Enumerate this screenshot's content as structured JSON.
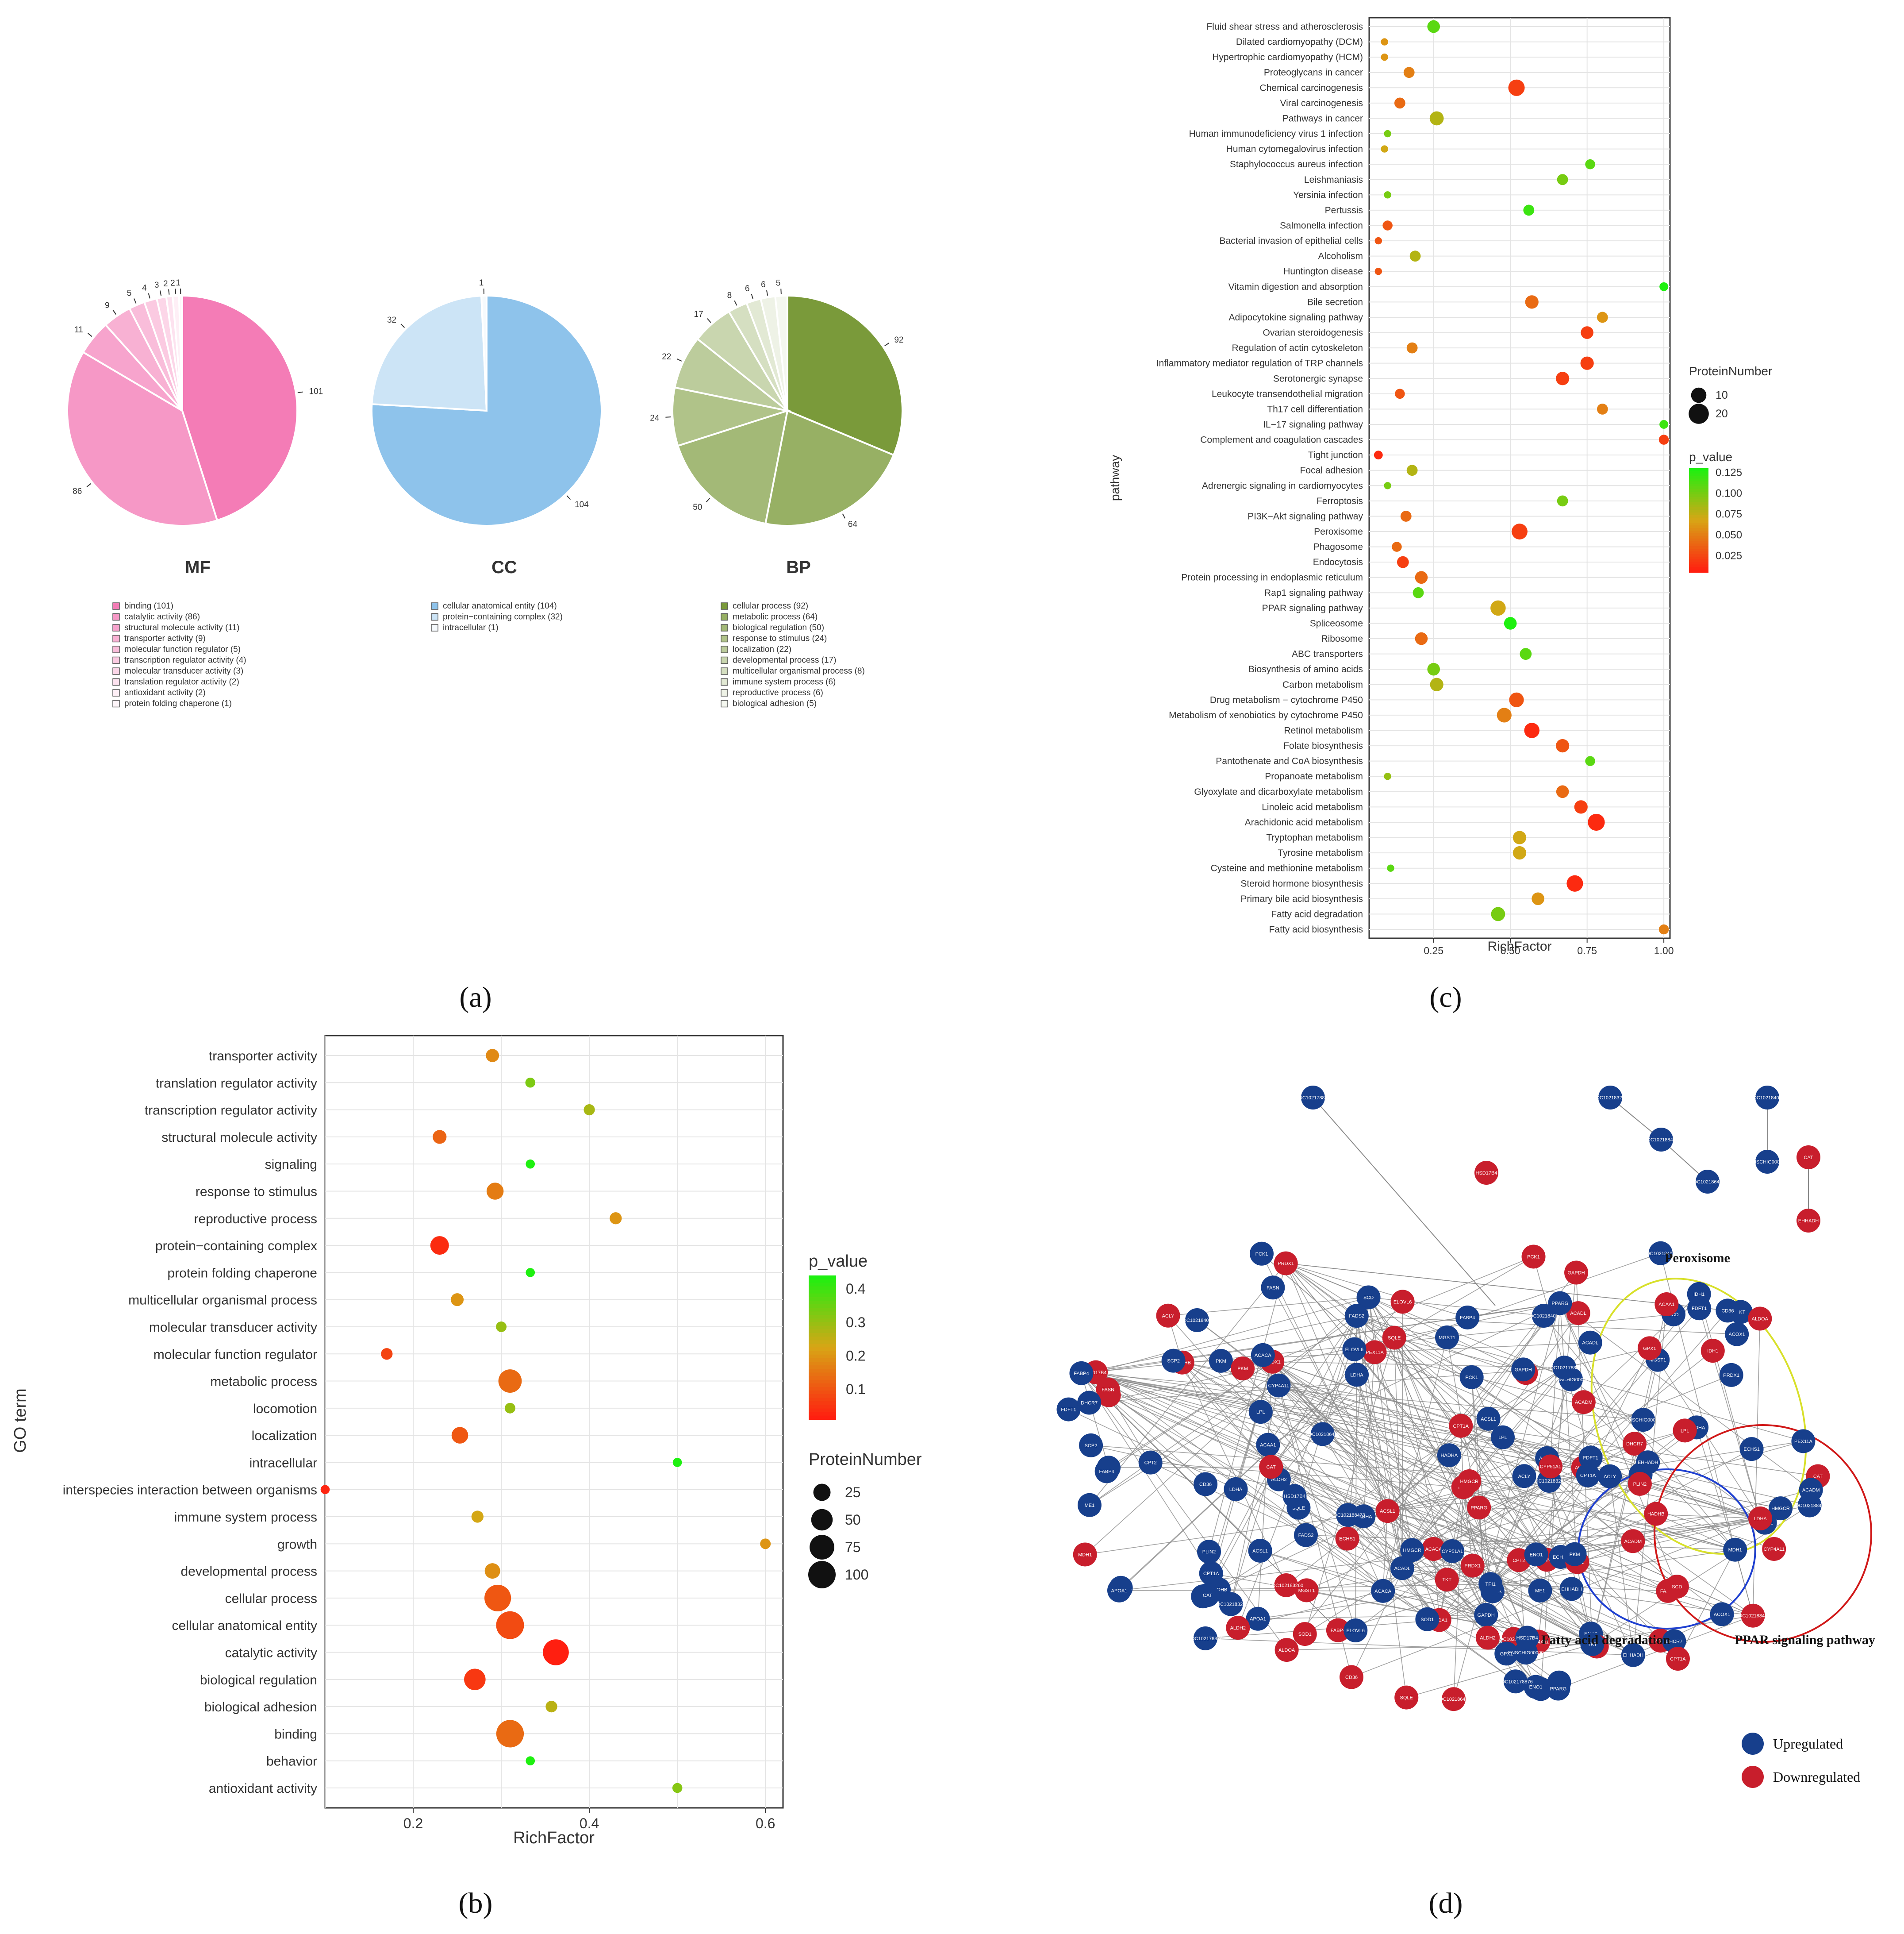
{
  "panels": [
    {
      "label": "(a)"
    },
    {
      "label": "(b)"
    },
    {
      "label": "(c)"
    },
    {
      "label": "(d)"
    }
  ],
  "colors": {
    "mf": "#f47cb6",
    "cc": "#8ec3eb",
    "bp": "#7a9a3a",
    "up": "#173f8c",
    "down": "#c81e2c",
    "p_low": "#ff1f10",
    "p_mid": "#d8a515",
    "p_high": "#1ef010"
  },
  "chart_data": [
    {
      "id": "pies",
      "type": "pie",
      "charts": [
        {
          "title": "MF",
          "values": [
            101,
            86,
            11,
            9,
            5,
            4,
            3,
            2,
            2,
            1
          ],
          "categories": [
            "binding",
            "catalytic activity",
            "structural molecule activity",
            "transporter activity",
            "molecular function regulator",
            "transcription regulator activity",
            "molecular transducer activity",
            "translation regulator activity",
            "antioxidant activity",
            "protein folding chaperone"
          ],
          "legend": [
            "binding (101)",
            "catalytic activity (86)",
            "structural molecule activity (11)",
            "transporter activity (9)",
            "molecular function regulator (5)",
            "transcription regulator activity (4)",
            "molecular transducer activity (3)",
            "translation regulator activity (2)",
            "antioxidant activity (2)",
            "protein folding chaperone (1)"
          ],
          "slice_labels": [
            "101",
            "86",
            "11",
            "9",
            "5",
            "4",
            "3",
            "2",
            "2",
            "1"
          ]
        },
        {
          "title": "CC",
          "values": [
            104,
            32,
            1
          ],
          "categories": [
            "cellular anatomical entity",
            "protein-containing complex",
            "intracellular"
          ],
          "legend": [
            "cellular anatomical entity (104)",
            "protein−containing complex (32)",
            "intracellular (1)"
          ],
          "slice_labels": [
            "104",
            "32",
            "1"
          ]
        },
        {
          "title": "BP",
          "values": [
            92,
            64,
            50,
            24,
            22,
            17,
            8,
            6,
            6,
            5
          ],
          "categories": [
            "cellular process",
            "metabolic process",
            "biological regulation",
            "response to stimulus",
            "localization",
            "developmental process",
            "multicellular organismal process",
            "immune system process",
            "reproductive process",
            "biological adhesion"
          ],
          "legend": [
            "cellular process (92)",
            "metabolic process (64)",
            "biological regulation (50)",
            "response to stimulus (24)",
            "localization (22)",
            "developmental process (17)",
            "multicellular organismal process (8)",
            "immune system process (6)",
            "reproductive process (6)",
            "biological adhesion (5)"
          ],
          "slice_labels": [
            "92",
            "64",
            "50",
            "24",
            "22",
            "17",
            "8",
            "6",
            "6",
            "5"
          ]
        }
      ]
    },
    {
      "id": "go_bubble",
      "type": "scatter",
      "xlabel": "RichFactor",
      "ylabel": "GO term",
      "xlim": [
        0.1,
        0.62
      ],
      "xticks": [
        "0.2",
        "0.4",
        "0.6"
      ],
      "xtick_values": [
        0.2,
        0.4,
        0.6
      ],
      "legend_color_title": "p_value",
      "color_ticks": [
        "0.4",
        "0.3",
        "0.2",
        "0.1"
      ],
      "color_tick_values": [
        0.4,
        0.3,
        0.2,
        0.1
      ],
      "color_range": [
        0.01,
        0.44
      ],
      "legend_size_title": "ProteinNumber",
      "size_ticks": [
        "25",
        "50",
        "75",
        "100"
      ],
      "size_tick_values": [
        25,
        50,
        75,
        100
      ],
      "categories": [
        "transporter activity",
        "translation regulator activity",
        "transcription regulator activity",
        "structural molecule activity",
        "signaling",
        "response to stimulus",
        "reproductive process",
        "protein−containing complex",
        "protein folding chaperone",
        "multicellular organismal process",
        "molecular transducer activity",
        "molecular function regulator",
        "metabolic process",
        "locomotion",
        "localization",
        "intracellular",
        "interspecies interaction between organisms",
        "immune system process",
        "growth",
        "developmental process",
        "cellular process",
        "cellular anatomical entity",
        "catalytic activity",
        "biological regulation",
        "biological adhesion",
        "binding",
        "behavior",
        "antioxidant activity"
      ],
      "x": [
        0.29,
        0.333,
        0.4,
        0.23,
        0.333,
        0.293,
        0.43,
        0.23,
        0.333,
        0.25,
        0.3,
        0.17,
        0.31,
        0.31,
        0.253,
        0.5,
        0.1,
        0.273,
        0.6,
        0.29,
        0.296,
        0.31,
        0.362,
        0.27,
        0.357,
        0.31,
        0.333,
        0.5
      ],
      "size": [
        9,
        2,
        4,
        11,
        1,
        24,
        6,
        32,
        1,
        8,
        3,
        5,
        64,
        3,
        22,
        1,
        1,
        6,
        3,
        17,
        92,
        104,
        86,
        50,
        5,
        101,
        1,
        2
      ],
      "p_value": [
        0.18,
        0.33,
        0.28,
        0.12,
        0.44,
        0.16,
        0.2,
        0.03,
        0.44,
        0.2,
        0.3,
        0.07,
        0.13,
        0.3,
        0.1,
        0.44,
        0.02,
        0.23,
        0.2,
        0.19,
        0.1,
        0.08,
        0.01,
        0.05,
        0.26,
        0.13,
        0.44,
        0.32
      ]
    },
    {
      "id": "kegg_bubble",
      "type": "scatter",
      "xlabel": "RichFactor",
      "ylabel": "pathway",
      "xlim": [
        0.04,
        1.02
      ],
      "xticks": [
        "0.25",
        "0.50",
        "0.75",
        "1.00"
      ],
      "xtick_values": [
        0.25,
        0.5,
        0.75,
        1.0
      ],
      "legend_size_title": "ProteinNumber",
      "size_ticks": [
        "10",
        "20"
      ],
      "size_tick_values": [
        10,
        20
      ],
      "legend_color_title": "p_value",
      "color_ticks": [
        "0.125",
        "0.100",
        "0.075",
        "0.050",
        "0.025"
      ],
      "color_tick_values": [
        0.125,
        0.1,
        0.075,
        0.05,
        0.025
      ],
      "color_range": [
        0.005,
        0.13
      ],
      "categories": [
        "Fluid shear stress and atherosclerosis",
        "Dilated cardiomyopathy (DCM)",
        "Hypertrophic cardiomyopathy (HCM)",
        "Proteoglycans in cancer",
        "Chemical carcinogenesis",
        "Viral carcinogenesis",
        "Pathways in cancer",
        "Human immunodeficiency virus 1 infection",
        "Human cytomegalovirus infection",
        "Staphylococcus aureus infection",
        "Leishmaniasis",
        "Yersinia infection",
        "Pertussis",
        "Salmonella infection",
        "Bacterial invasion of epithelial cells",
        "Alcoholism",
        "Huntington disease",
        "Vitamin digestion and absorption",
        "Bile secretion",
        "Adipocytokine signaling pathway",
        "Ovarian steroidogenesis",
        "Regulation of actin cytoskeleton",
        "Inflammatory mediator regulation of TRP channels",
        "Serotonergic synapse",
        "Leukocyte transendothelial migration",
        "Th17 cell differentiation",
        "IL−17 signaling pathway",
        "Complement and coagulation cascades",
        "Tight junction",
        "Focal adhesion",
        "Adrenergic signaling in cardiomyocytes",
        "Ferroptosis",
        "PI3K−Akt signaling pathway",
        "Peroxisome",
        "Phagosome",
        "Endocytosis",
        "Protein processing in endoplasmic reticulum",
        "Rap1 signaling pathway",
        "PPAR signaling pathway",
        "Spliceosome",
        "Ribosome",
        "ABC transporters",
        "Biosynthesis of amino acids",
        "Carbon metabolism",
        "Drug metabolism − cytochrome P450",
        "Metabolism of xenobiotics by cytochrome P450",
        "Retinol metabolism",
        "Folate biosynthesis",
        "Pantothenate and CoA biosynthesis",
        "Propanoate metabolism",
        "Glyoxylate and dicarboxylate metabolism",
        "Linoleic acid metabolism",
        "Arachidonic acid metabolism",
        "Tryptophan metabolism",
        "Tyrosine metabolism",
        "Cysteine and methionine metabolism",
        "Steroid hormone biosynthesis",
        "Primary bile acid biosynthesis",
        "Fatty acid degradation",
        "Fatty acid biosynthesis"
      ],
      "x": [
        0.25,
        0.09,
        0.09,
        0.17,
        0.52,
        0.14,
        0.26,
        0.1,
        0.09,
        0.76,
        0.67,
        0.1,
        0.56,
        0.1,
        0.07,
        0.19,
        0.07,
        1.0,
        0.57,
        0.8,
        0.75,
        0.18,
        0.75,
        0.67,
        0.14,
        0.8,
        1.0,
        1.0,
        0.07,
        0.18,
        0.1,
        0.67,
        0.16,
        0.53,
        0.13,
        0.15,
        0.21,
        0.2,
        0.46,
        0.5,
        0.21,
        0.55,
        0.25,
        0.26,
        0.52,
        0.48,
        0.57,
        0.67,
        0.76,
        0.1,
        0.67,
        0.73,
        0.78,
        0.53,
        0.53,
        0.11,
        0.71,
        0.59,
        0.46,
        1.0
      ],
      "size": [
        6,
        1,
        1,
        4,
        12,
        4,
        8,
        1,
        1,
        3,
        4,
        1,
        4,
        3,
        1,
        4,
        1,
        2,
        7,
        4,
        6,
        4,
        7,
        7,
        3,
        4,
        2,
        3,
        2,
        4,
        1,
        4,
        4,
        11,
        3,
        5,
        6,
        4,
        10,
        6,
        6,
        5,
        6,
        7,
        9,
        9,
        10,
        7,
        3,
        1,
        6,
        7,
        13,
        7,
        7,
        1,
        12,
        6,
        8,
        3
      ],
      "p_value": [
        0.11,
        0.06,
        0.06,
        0.05,
        0.02,
        0.04,
        0.08,
        0.1,
        0.07,
        0.11,
        0.1,
        0.1,
        0.12,
        0.03,
        0.03,
        0.08,
        0.03,
        0.13,
        0.04,
        0.06,
        0.02,
        0.05,
        0.02,
        0.02,
        0.03,
        0.05,
        0.12,
        0.02,
        0.01,
        0.08,
        0.1,
        0.1,
        0.04,
        0.02,
        0.04,
        0.02,
        0.04,
        0.11,
        0.07,
        0.13,
        0.04,
        0.11,
        0.1,
        0.08,
        0.03,
        0.05,
        0.01,
        0.03,
        0.11,
        0.09,
        0.04,
        0.02,
        0.01,
        0.07,
        0.07,
        0.11,
        0.01,
        0.06,
        0.1,
        0.05
      ]
    },
    {
      "id": "ppi_network",
      "type": "network",
      "groups": [
        "Peroxisome",
        "Fatty acid degradation",
        "PPAR signaling pathway"
      ],
      "legend": [
        "Upregulated",
        "Downregulated"
      ]
    }
  ],
  "network_labels": [
    "LOC102178876",
    "LOC102183260",
    "LOC102188473",
    "LOC102186459",
    "LOC102184072",
    "ENSCHIG00000",
    "CAT",
    "EHHADH",
    "HSD17B4",
    "ACOX1",
    "CPT1A",
    "ACADM",
    "PPARG",
    "FABP4",
    "SCD",
    "PLIN2",
    "ECHS1",
    "HADHA",
    "ALDH2",
    "CYP4A11",
    "ACSL1",
    "PEX11A",
    "SCP2",
    "MGST1",
    "ACAA1",
    "FADS2",
    "ME1",
    "APOA1",
    "ELOVL6",
    "LPL",
    "CD36",
    "CPT2",
    "HADHB",
    "ACADL",
    "PCK1",
    "GPX1",
    "SOD1",
    "PRDX1",
    "TKT",
    "GAPDH",
    "PKM",
    "ENO1",
    "ALDOA",
    "TPI1",
    "LDHA",
    "MDH1",
    "IDH1",
    "ACLY",
    "FASN",
    "ACACA",
    "HMGCR",
    "SQLE",
    "CYP51A1",
    "DHCR7",
    "FDFT1"
  ]
}
